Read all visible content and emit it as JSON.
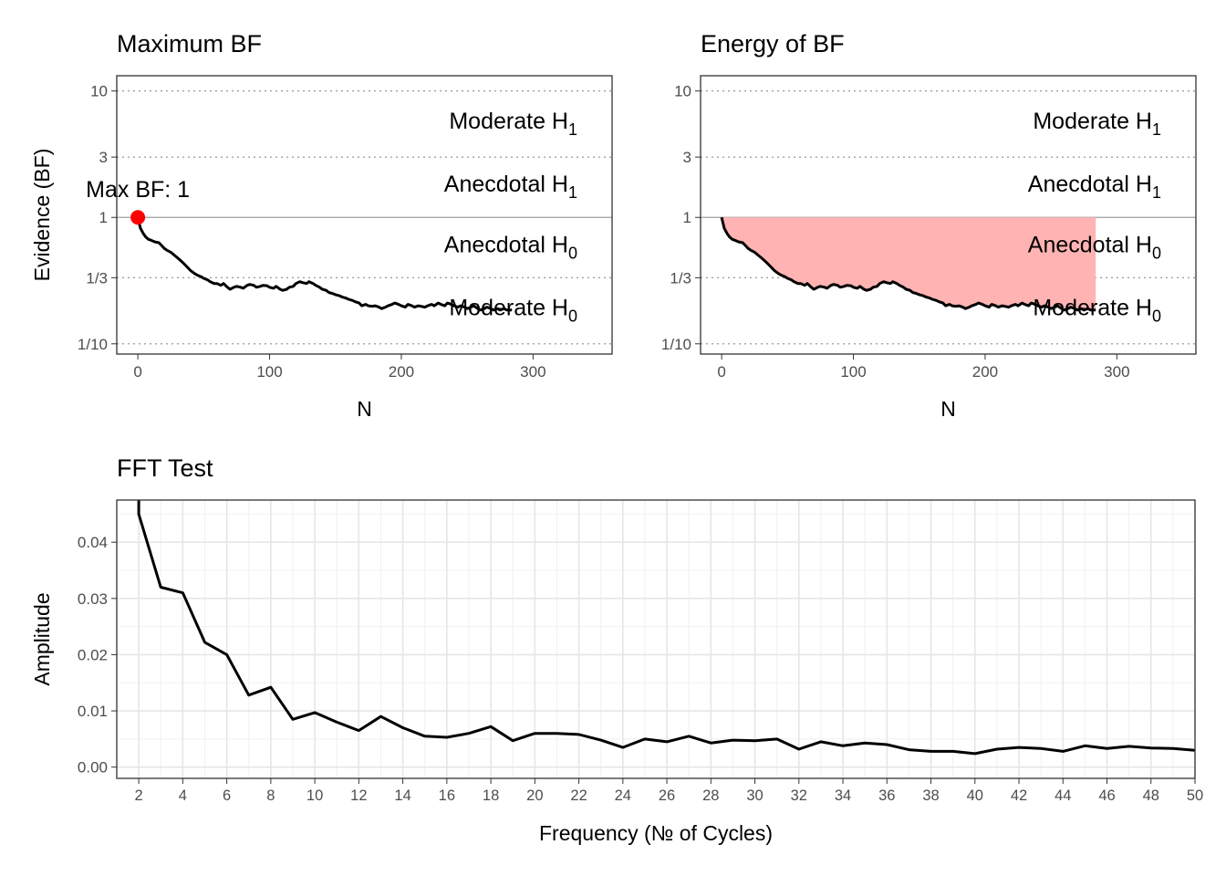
{
  "chart_data": [
    {
      "type": "line",
      "title": "Maximum BF",
      "xlabel": "N",
      "ylabel": "Evidence (BF)",
      "scale": "log",
      "xlim": [
        -16,
        360
      ],
      "ylim": [
        0.083,
        13.2
      ],
      "x_ticks": [
        0,
        100,
        200,
        300
      ],
      "y_ticks": [
        {
          "value": 10,
          "label": "10"
        },
        {
          "value": 3,
          "label": "3"
        },
        {
          "value": 1,
          "label": "1"
        },
        {
          "value": 0.3333,
          "label": "1/3"
        },
        {
          "value": 0.1,
          "label": "1/10"
        }
      ],
      "grid": false,
      "annotations": [
        {
          "main": "Moderate H",
          "sub": "1"
        },
        {
          "main": "Anecdotal H",
          "sub": "1"
        },
        {
          "main": "Anecdotal H",
          "sub": "0"
        },
        {
          "main": "Moderate H",
          "sub": "0"
        }
      ],
      "max_point": {
        "x": 0,
        "y": 1,
        "label": "Max BF: 1",
        "color": "#ff0000"
      },
      "series": [
        {
          "x": [
            0,
            1,
            2,
            4,
            6,
            8,
            10,
            13,
            16,
            18,
            20,
            22,
            25,
            28,
            30,
            33,
            35,
            38,
            40,
            43,
            45,
            48,
            50,
            53,
            55,
            58,
            60,
            63,
            65,
            68,
            70,
            73,
            75,
            78,
            80,
            83,
            85,
            88,
            90,
            93,
            95,
            98,
            100,
            103,
            105,
            108,
            110,
            113,
            115,
            118,
            120,
            123,
            125,
            128,
            130,
            133,
            135,
            138,
            140,
            143,
            145,
            148,
            150,
            153,
            155,
            158,
            160,
            163,
            165,
            168,
            170,
            173,
            175,
            178,
            180,
            183,
            185,
            188,
            190,
            193,
            195,
            198,
            200,
            203,
            205,
            208,
            210,
            213,
            215,
            218,
            220,
            223,
            225,
            228,
            230,
            233,
            235,
            238,
            240,
            243,
            245,
            248,
            250,
            253,
            255,
            258,
            260,
            263,
            265,
            268,
            270,
            273,
            275,
            278,
            280,
            284
          ],
          "y": [
            1,
            0.9,
            0.82,
            0.75,
            0.7,
            0.67,
            0.66,
            0.64,
            0.63,
            0.6,
            0.57,
            0.55,
            0.53,
            0.5,
            0.48,
            0.45,
            0.43,
            0.4,
            0.38,
            0.36,
            0.35,
            0.34,
            0.33,
            0.32,
            0.31,
            0.3,
            0.3,
            0.29,
            0.3,
            0.28,
            0.27,
            0.28,
            0.285,
            0.28,
            0.275,
            0.29,
            0.295,
            0.29,
            0.28,
            0.285,
            0.29,
            0.288,
            0.28,
            0.275,
            0.285,
            0.27,
            0.265,
            0.27,
            0.28,
            0.285,
            0.3,
            0.31,
            0.305,
            0.3,
            0.31,
            0.3,
            0.29,
            0.28,
            0.27,
            0.265,
            0.255,
            0.25,
            0.245,
            0.24,
            0.235,
            0.23,
            0.225,
            0.22,
            0.215,
            0.21,
            0.2,
            0.205,
            0.2,
            0.198,
            0.2,
            0.195,
            0.19,
            0.195,
            0.2,
            0.205,
            0.21,
            0.205,
            0.2,
            0.195,
            0.205,
            0.2,
            0.195,
            0.2,
            0.198,
            0.195,
            0.2,
            0.205,
            0.2,
            0.21,
            0.205,
            0.2,
            0.21,
            0.205,
            0.2,
            0.195,
            0.2,
            0.195,
            0.19,
            0.195,
            0.2,
            0.19,
            0.185,
            0.19,
            0.195,
            0.19,
            0.185,
            0.19,
            0.185,
            0.19,
            0.185,
            0.185
          ]
        }
      ]
    },
    {
      "type": "area",
      "title": "Energy of BF",
      "xlabel": "N",
      "ylabel": "",
      "scale": "log",
      "xlim": [
        -16,
        360
      ],
      "ylim": [
        0.083,
        13.2
      ],
      "x_ticks": [
        0,
        100,
        200,
        300
      ],
      "y_ticks": [
        {
          "value": 10,
          "label": "10"
        },
        {
          "value": 3,
          "label": "3"
        },
        {
          "value": 1,
          "label": "1"
        },
        {
          "value": 0.3333,
          "label": "1/3"
        },
        {
          "value": 0.1,
          "label": "1/10"
        }
      ],
      "grid": false,
      "fill_color": "#ffb3b3",
      "annotations": [
        {
          "main": "Moderate H",
          "sub": "1"
        },
        {
          "main": "Anecdotal H",
          "sub": "1"
        },
        {
          "main": "Anecdotal H",
          "sub": "0"
        },
        {
          "main": "Moderate H",
          "sub": "0"
        }
      ],
      "series_ref": "same BF trajectory as Maximum BF"
    },
    {
      "type": "line",
      "title": "FFT Test",
      "xlabel": "Frequency (№ of Cycles)",
      "ylabel": "Amplitude",
      "xlim": [
        1,
        50
      ],
      "ylim": [
        -0.002,
        0.0475
      ],
      "x_ticks": [
        2,
        4,
        6,
        8,
        10,
        12,
        14,
        16,
        18,
        20,
        22,
        24,
        26,
        28,
        30,
        32,
        34,
        36,
        38,
        40,
        42,
        44,
        46,
        48,
        50
      ],
      "y_ticks": [
        0.0,
        0.01,
        0.02,
        0.03,
        0.04
      ],
      "y_tick_labels": [
        "0.00",
        "0.01",
        "0.02",
        "0.03",
        "0.04"
      ],
      "grid": true,
      "series": [
        {
          "x": [
            2,
            3,
            4,
            5,
            6,
            7,
            8,
            9,
            10,
            11,
            12,
            13,
            14,
            15,
            16,
            17,
            18,
            19,
            20,
            21,
            22,
            23,
            24,
            25,
            26,
            27,
            28,
            29,
            30,
            31,
            32,
            33,
            34,
            35,
            36,
            37,
            38,
            39,
            40,
            41,
            42,
            43,
            44,
            45,
            46,
            47,
            48,
            49,
            50
          ],
          "y": [
            0.045,
            0.032,
            0.031,
            0.0222,
            0.02,
            0.0128,
            0.0142,
            0.0085,
            0.0097,
            0.008,
            0.0065,
            0.009,
            0.007,
            0.0055,
            0.0053,
            0.006,
            0.0072,
            0.0047,
            0.006,
            0.006,
            0.0058,
            0.0048,
            0.0035,
            0.005,
            0.0045,
            0.0055,
            0.0043,
            0.0048,
            0.0047,
            0.005,
            0.0032,
            0.0045,
            0.0038,
            0.0043,
            0.004,
            0.0031,
            0.0028,
            0.0028,
            0.0024,
            0.0032,
            0.0035,
            0.0033,
            0.0028,
            0.0038,
            0.0033,
            0.0037,
            0.0034,
            0.0033,
            0.003
          ]
        }
      ]
    }
  ]
}
